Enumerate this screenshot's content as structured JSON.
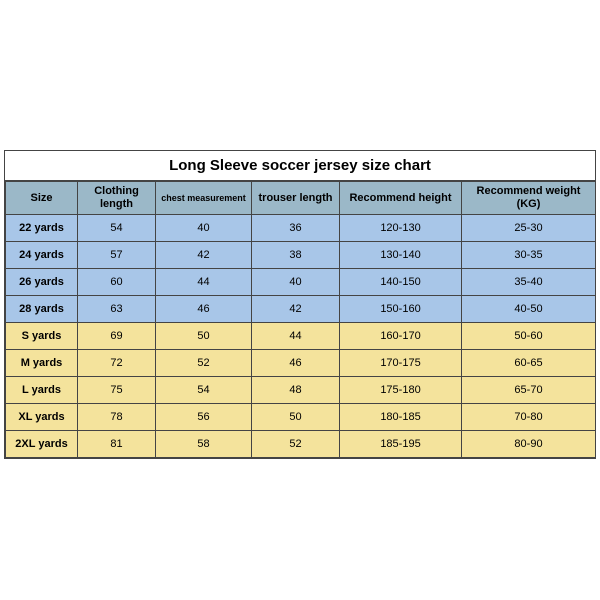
{
  "chart": {
    "title": "Long Sleeve soccer jersey size chart",
    "title_fontsize": 15,
    "background_color": "#ffffff",
    "border_color": "#444444",
    "header_bg": "#9bb8c8",
    "row_group1_bg": "#a8c6e8",
    "row_group2_bg": "#f4e39c",
    "cell_font_size": 11,
    "header_font_size": 11,
    "columns": [
      {
        "key": "size",
        "label": "Size",
        "width": 72
      },
      {
        "key": "clothing_length",
        "label": "Clothing length",
        "width": 78
      },
      {
        "key": "chest",
        "label": "chest measurement",
        "width": 96
      },
      {
        "key": "trouser",
        "label": "trouser length",
        "width": 88
      },
      {
        "key": "rec_height",
        "label": "Recommend height",
        "width": 122
      },
      {
        "key": "rec_weight",
        "label": "Recommend weight (KG)",
        "width": 134
      }
    ],
    "rows": [
      {
        "group": 1,
        "cells": [
          "22 yards",
          "54",
          "40",
          "36",
          "120-130",
          "25-30"
        ]
      },
      {
        "group": 1,
        "cells": [
          "24 yards",
          "57",
          "42",
          "38",
          "130-140",
          "30-35"
        ]
      },
      {
        "group": 1,
        "cells": [
          "26 yards",
          "60",
          "44",
          "40",
          "140-150",
          "35-40"
        ]
      },
      {
        "group": 1,
        "cells": [
          "28 yards",
          "63",
          "46",
          "42",
          "150-160",
          "40-50"
        ]
      },
      {
        "group": 2,
        "cells": [
          "S yards",
          "69",
          "50",
          "44",
          "160-170",
          "50-60"
        ]
      },
      {
        "group": 2,
        "cells": [
          "M yards",
          "72",
          "52",
          "46",
          "170-175",
          "60-65"
        ]
      },
      {
        "group": 2,
        "cells": [
          "L yards",
          "75",
          "54",
          "48",
          "175-180",
          "65-70"
        ]
      },
      {
        "group": 2,
        "cells": [
          "XL yards",
          "78",
          "56",
          "50",
          "180-185",
          "70-80"
        ]
      },
      {
        "group": 2,
        "cells": [
          "2XL yards",
          "81",
          "58",
          "52",
          "185-195",
          "80-90"
        ]
      }
    ]
  }
}
